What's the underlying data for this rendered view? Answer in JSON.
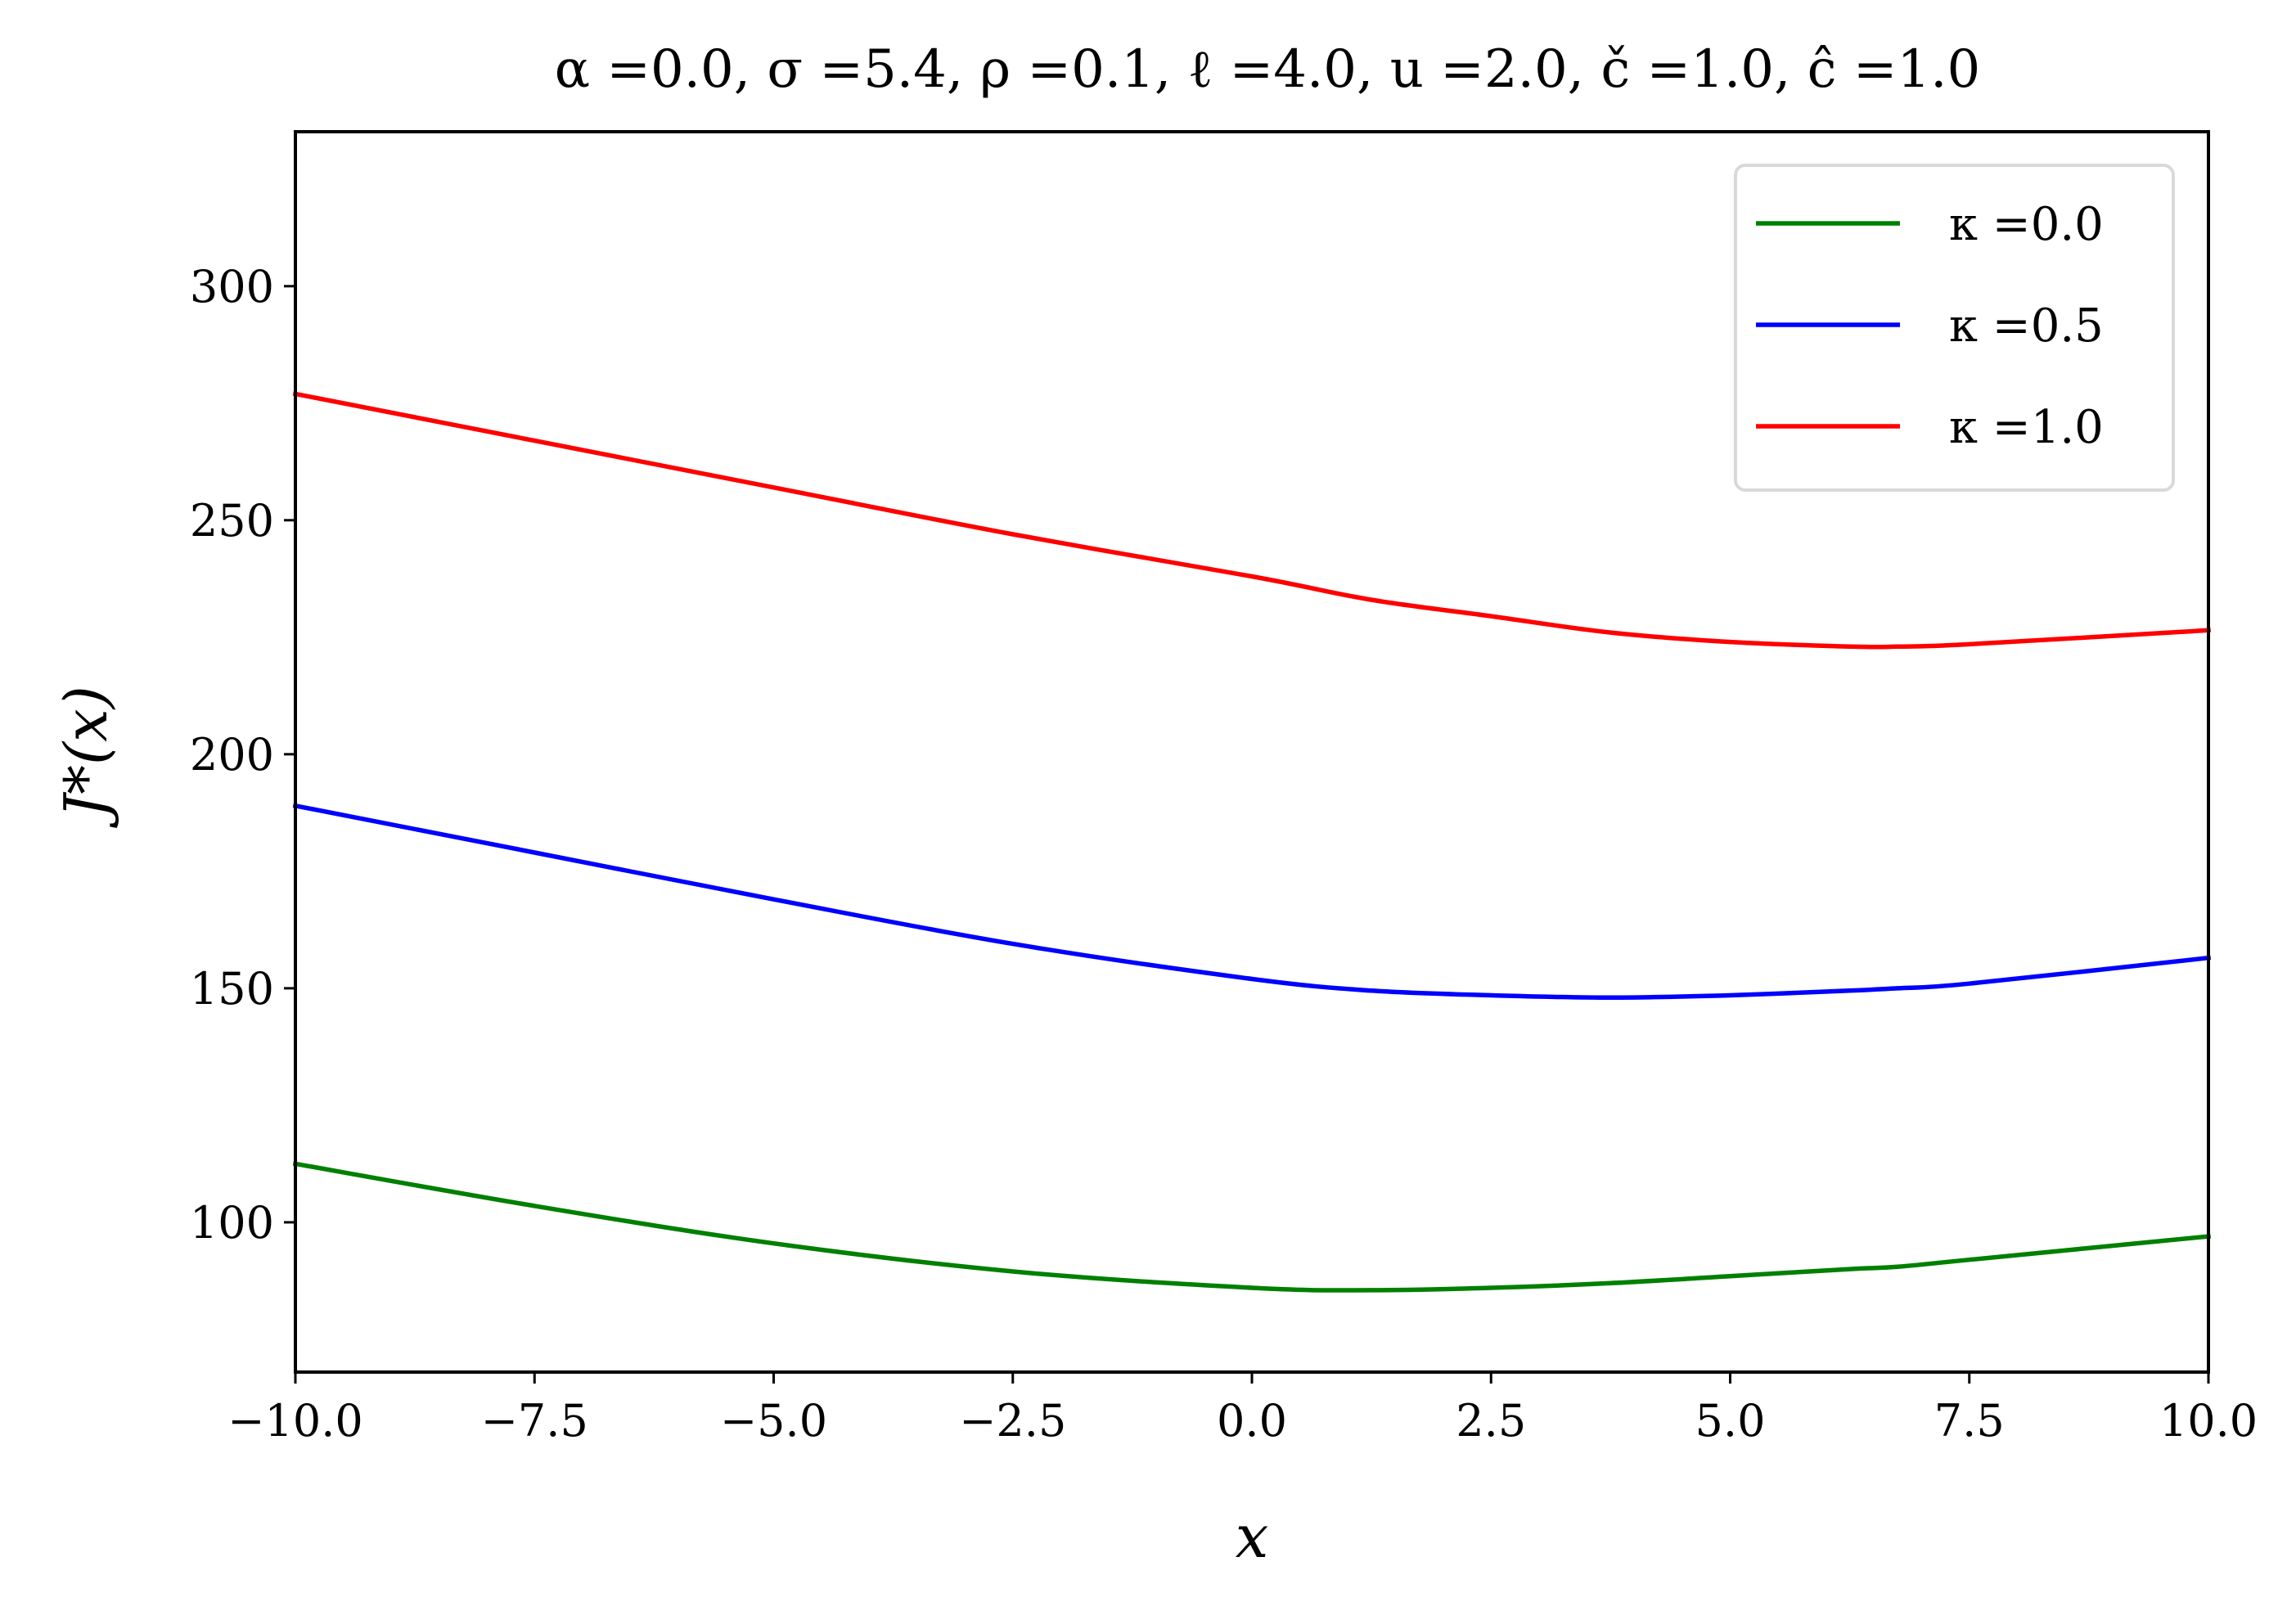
{
  "chart_data": {
    "type": "line",
    "title": "α =0.0, σ =5.4, ρ =0.1, ℓ =4.0, u =2.0, č =1.0, ĉ =1.0",
    "xlabel": "x",
    "ylabel": "J*(x)",
    "xlim": [
      -10,
      10
    ],
    "ylim": [
      68,
      333
    ],
    "xticks": [
      -10,
      -7.5,
      -5,
      -2.5,
      0,
      2.5,
      5,
      7.5,
      10
    ],
    "xtick_labels": [
      "−10.0",
      "−7.5",
      "−5.0",
      "−2.5",
      "0.0",
      "2.5",
      "5.0",
      "7.5",
      "10.0"
    ],
    "yticks": [
      100,
      150,
      200,
      250,
      300
    ],
    "ytick_labels": [
      "100",
      "150",
      "200",
      "250",
      "300"
    ],
    "grid": false,
    "legend_position": "top-right",
    "x": [
      -10,
      -7.5,
      -5,
      -2.5,
      0,
      1.25,
      2.5,
      3.75,
      5,
      6.25,
      6.75,
      7.5,
      10
    ],
    "series": [
      {
        "name": "κ =0.0",
        "color": "#008000",
        "values": [
          112.5,
          103.5,
          95.5,
          89.5,
          86.0,
          85.5,
          86.0,
          87.0,
          88.5,
          90.0,
          90.5,
          92.0,
          97.0
        ]
      },
      {
        "name": "κ =0.5",
        "color": "#0000ff",
        "values": [
          189.0,
          179.0,
          169.0,
          159.5,
          152.0,
          149.5,
          148.5,
          148.0,
          148.5,
          149.5,
          150.0,
          151.0,
          156.5
        ]
      },
      {
        "name": "κ =1.0",
        "color": "#ff0000",
        "values": [
          277.0,
          267.0,
          257.0,
          247.0,
          238.0,
          233.0,
          229.5,
          226.0,
          224.0,
          223.0,
          223.0,
          223.5,
          226.5
        ]
      }
    ]
  }
}
